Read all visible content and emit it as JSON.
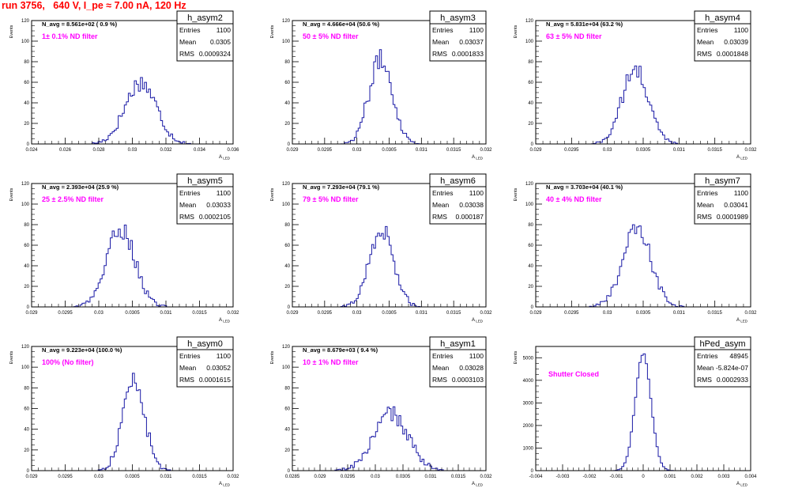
{
  "page": {
    "title": "run 3756,   640 V, I_pe ≈ 7.00 nA, 120 Hz"
  },
  "chart_data": [
    {
      "type": "bar",
      "title": "h_asym2",
      "xlabel": "A_LED",
      "ylabel": "Events",
      "xlim": [
        0.024,
        0.036
      ],
      "ylim": [
        0,
        120
      ],
      "xticks": [
        "0.024",
        "0.026",
        "0.028",
        "0.03",
        "0.032",
        "0.034",
        "0.036"
      ],
      "yticks": [
        "0",
        "20",
        "40",
        "60",
        "80",
        "100",
        "120"
      ],
      "stats": {
        "name": "h_asym2",
        "entries": "1100",
        "mean": "0.0305",
        "rms": "0.0009324"
      },
      "stats_labels": [
        "Entries",
        "Mean",
        "RMS"
      ],
      "annotation": "N_avg = 8.561e+02 ( 0.9 %)",
      "filter_label": "1± 0.1% ND filter",
      "mean": 0.0305,
      "rms": 0.0009324,
      "peak": 60,
      "entries": 1100,
      "grid": false
    },
    {
      "type": "bar",
      "title": "h_asym3",
      "xlabel": "A_LED",
      "ylabel": "Events",
      "xlim": [
        0.029,
        0.032
      ],
      "ylim": [
        0,
        120
      ],
      "xticks": [
        "0.029",
        "0.0295",
        "0.03",
        "0.0305",
        "0.031",
        "0.0315",
        "0.032"
      ],
      "yticks": [
        "0",
        "20",
        "40",
        "60",
        "80",
        "100",
        "120"
      ],
      "stats": {
        "name": "h_asym3",
        "entries": "1100",
        "mean": "0.03037",
        "rms": "0.0001833"
      },
      "stats_labels": [
        "Entries",
        "Mean",
        "RMS"
      ],
      "annotation": "N_avg = 4.666e+04 (50.6 %)",
      "filter_label": "50 ± 5% ND filter",
      "mean": 0.03037,
      "rms": 0.0001833,
      "peak": 82,
      "entries": 1100,
      "grid": false
    },
    {
      "type": "bar",
      "title": "h_asym4",
      "xlabel": "A_LED",
      "ylabel": "Events",
      "xlim": [
        0.029,
        0.032
      ],
      "ylim": [
        0,
        120
      ],
      "xticks": [
        "0.029",
        "0.0295",
        "0.03",
        "0.0305",
        "0.031",
        "0.0315",
        "0.032"
      ],
      "yticks": [
        "0",
        "20",
        "40",
        "60",
        "80",
        "100",
        "120"
      ],
      "stats": {
        "name": "h_asym4",
        "entries": "1100",
        "mean": "0.03039",
        "rms": "0.0001848"
      },
      "stats_labels": [
        "Entries",
        "Mean",
        "RMS"
      ],
      "annotation": "N_avg = 5.831e+04 (63.2 %)",
      "filter_label": "63 ± 5% ND filter",
      "mean": 0.03039,
      "rms": 0.0001848,
      "peak": 72,
      "entries": 1100,
      "grid": false
    },
    {
      "type": "bar",
      "title": "h_asym5",
      "xlabel": "A_LED",
      "ylabel": "Events",
      "xlim": [
        0.029,
        0.032
      ],
      "ylim": [
        0,
        120
      ],
      "xticks": [
        "0.029",
        "0.0295",
        "0.03",
        "0.0305",
        "0.031",
        "0.0315",
        "0.032"
      ],
      "yticks": [
        "0",
        "20",
        "40",
        "60",
        "80",
        "100",
        "120"
      ],
      "stats": {
        "name": "h_asym5",
        "entries": "1100",
        "mean": "0.03033",
        "rms": "0.0002105"
      },
      "stats_labels": [
        "Entries",
        "Mean",
        "RMS"
      ],
      "annotation": "N_avg = 2.393e+04 (25.9 %)",
      "filter_label": "25 ± 2.5% ND filter",
      "mean": 0.03033,
      "rms": 0.0002105,
      "peak": 76,
      "entries": 1100,
      "grid": false
    },
    {
      "type": "bar",
      "title": "h_asym6",
      "xlabel": "A_LED",
      "ylabel": "Events",
      "xlim": [
        0.029,
        0.032
      ],
      "ylim": [
        0,
        120
      ],
      "xticks": [
        "0.029",
        "0.0295",
        "0.03",
        "0.0305",
        "0.031",
        "0.0315",
        "0.032"
      ],
      "yticks": [
        "0",
        "20",
        "40",
        "60",
        "80",
        "100",
        "120"
      ],
      "stats": {
        "name": "h_asym6",
        "entries": "1100",
        "mean": "0.03038",
        "rms": "0.000187"
      },
      "stats_labels": [
        "Entries",
        "Mean",
        "RMS"
      ],
      "annotation": "N_avg = 7.293e+04 (79.1 %)",
      "filter_label": "79 ± 5% ND filter",
      "mean": 0.03038,
      "rms": 0.000187,
      "peak": 76,
      "entries": 1100,
      "grid": false
    },
    {
      "type": "bar",
      "title": "h_asym7",
      "xlabel": "A_LED",
      "ylabel": "Events",
      "xlim": [
        0.029,
        0.032
      ],
      "ylim": [
        0,
        120
      ],
      "xticks": [
        "0.029",
        "0.0295",
        "0.03",
        "0.0305",
        "0.031",
        "0.0315",
        "0.032"
      ],
      "yticks": [
        "0",
        "20",
        "40",
        "60",
        "80",
        "100",
        "120"
      ],
      "stats": {
        "name": "h_asym7",
        "entries": "1100",
        "mean": "0.03041",
        "rms": "0.0001989"
      },
      "stats_labels": [
        "Entries",
        "Mean",
        "RMS"
      ],
      "annotation": "N_avg = 3.703e+04 (40.1 %)",
      "filter_label": "40 ± 4% ND filter",
      "mean": 0.03041,
      "rms": 0.0001989,
      "peak": 75,
      "entries": 1100,
      "grid": false
    },
    {
      "type": "bar",
      "title": "h_asym0",
      "xlabel": "A_LED",
      "ylabel": "Events",
      "xlim": [
        0.029,
        0.032
      ],
      "ylim": [
        0,
        120
      ],
      "xticks": [
        "0.029",
        "0.0295",
        "0.03",
        "0.0305",
        "0.031",
        "0.0315",
        "0.032"
      ],
      "yticks": [
        "0",
        "20",
        "40",
        "60",
        "80",
        "100",
        "120"
      ],
      "stats": {
        "name": "h_asym0",
        "entries": "1100",
        "mean": "0.03052",
        "rms": "0.0001615"
      },
      "stats_labels": [
        "Entries",
        "Mean",
        "RMS"
      ],
      "annotation": "N_avg = 9.223e+04 (100.0 %)",
      "filter_label": "100% (No filter)",
      "mean": 0.03052,
      "rms": 0.0001615,
      "peak": 88,
      "entries": 1100,
      "grid": false
    },
    {
      "type": "bar",
      "title": "h_asym1",
      "xlabel": "A_LED",
      "ylabel": "Events",
      "xlim": [
        0.0285,
        0.032
      ],
      "ylim": [
        0,
        120
      ],
      "xticks": [
        "0.0285",
        "0.029",
        "0.0295",
        "0.03",
        "0.0305",
        "0.031",
        "0.0315",
        "0.032"
      ],
      "yticks": [
        "0",
        "20",
        "40",
        "60",
        "80",
        "100",
        "120"
      ],
      "stats": {
        "name": "h_asym1",
        "entries": "1100",
        "mean": "0.03028",
        "rms": "0.0003103"
      },
      "stats_labels": [
        "Entries",
        "Mean",
        "RMS"
      ],
      "annotation": "N_avg = 8.679e+03 ( 9.4 %)",
      "filter_label": "10 ± 1% ND filter",
      "mean": 0.03028,
      "rms": 0.0003103,
      "peak": 55,
      "entries": 1100,
      "grid": false
    },
    {
      "type": "bar",
      "title": "hPed_asym",
      "xlabel": "A_LED",
      "ylabel": "Events",
      "xlim": [
        -0.004,
        0.004
      ],
      "ylim": [
        0,
        5500
      ],
      "xticks": [
        "-0.004",
        "-0.003",
        "-0.002",
        "-0.001",
        "0",
        "0.001",
        "0.002",
        "0.003",
        "0.004"
      ],
      "yticks": [
        "0",
        "1000",
        "2000",
        "3000",
        "4000",
        "5000"
      ],
      "stats": {
        "name": "hPed_asym",
        "entries": "48945",
        "mean": "-5.824e-07",
        "rms": "0.0002933"
      },
      "stats_labels": [
        "Entries",
        "Mean",
        "RMS"
      ],
      "annotation": "",
      "filter_label": "Shutter Closed",
      "mean": -5.824e-07,
      "rms": 0.0002933,
      "peak": 5150,
      "entries": 48945,
      "grid": false
    }
  ]
}
